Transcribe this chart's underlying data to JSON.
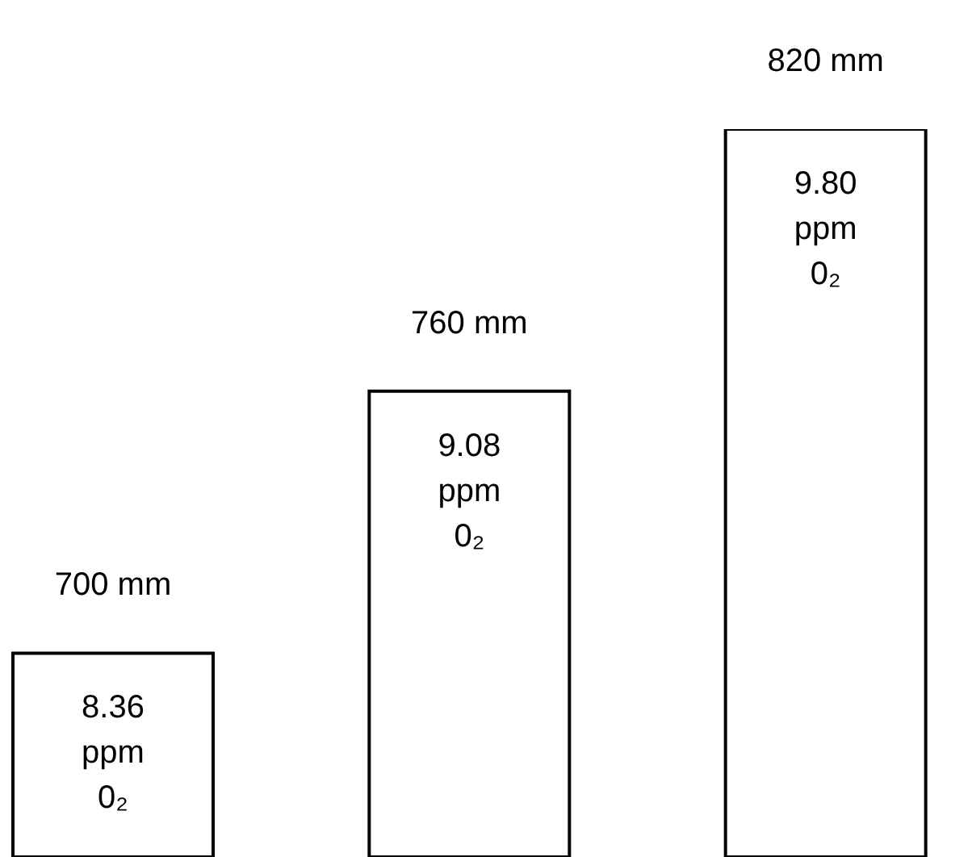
{
  "chart_data": {
    "type": "bar",
    "tick_labels": false,
    "ylim": [
      7.8,
      9.8
    ],
    "categories": [
      "700 mm",
      "760 mm",
      "820 mm"
    ],
    "values": [
      8.36,
      9.08,
      9.8
    ],
    "color": "#ffffff",
    "value_labels": [
      "8.36 ppm 0₂",
      "9.08 ppm 0₂",
      "9.80 ppm 0₂"
    ]
  }
}
